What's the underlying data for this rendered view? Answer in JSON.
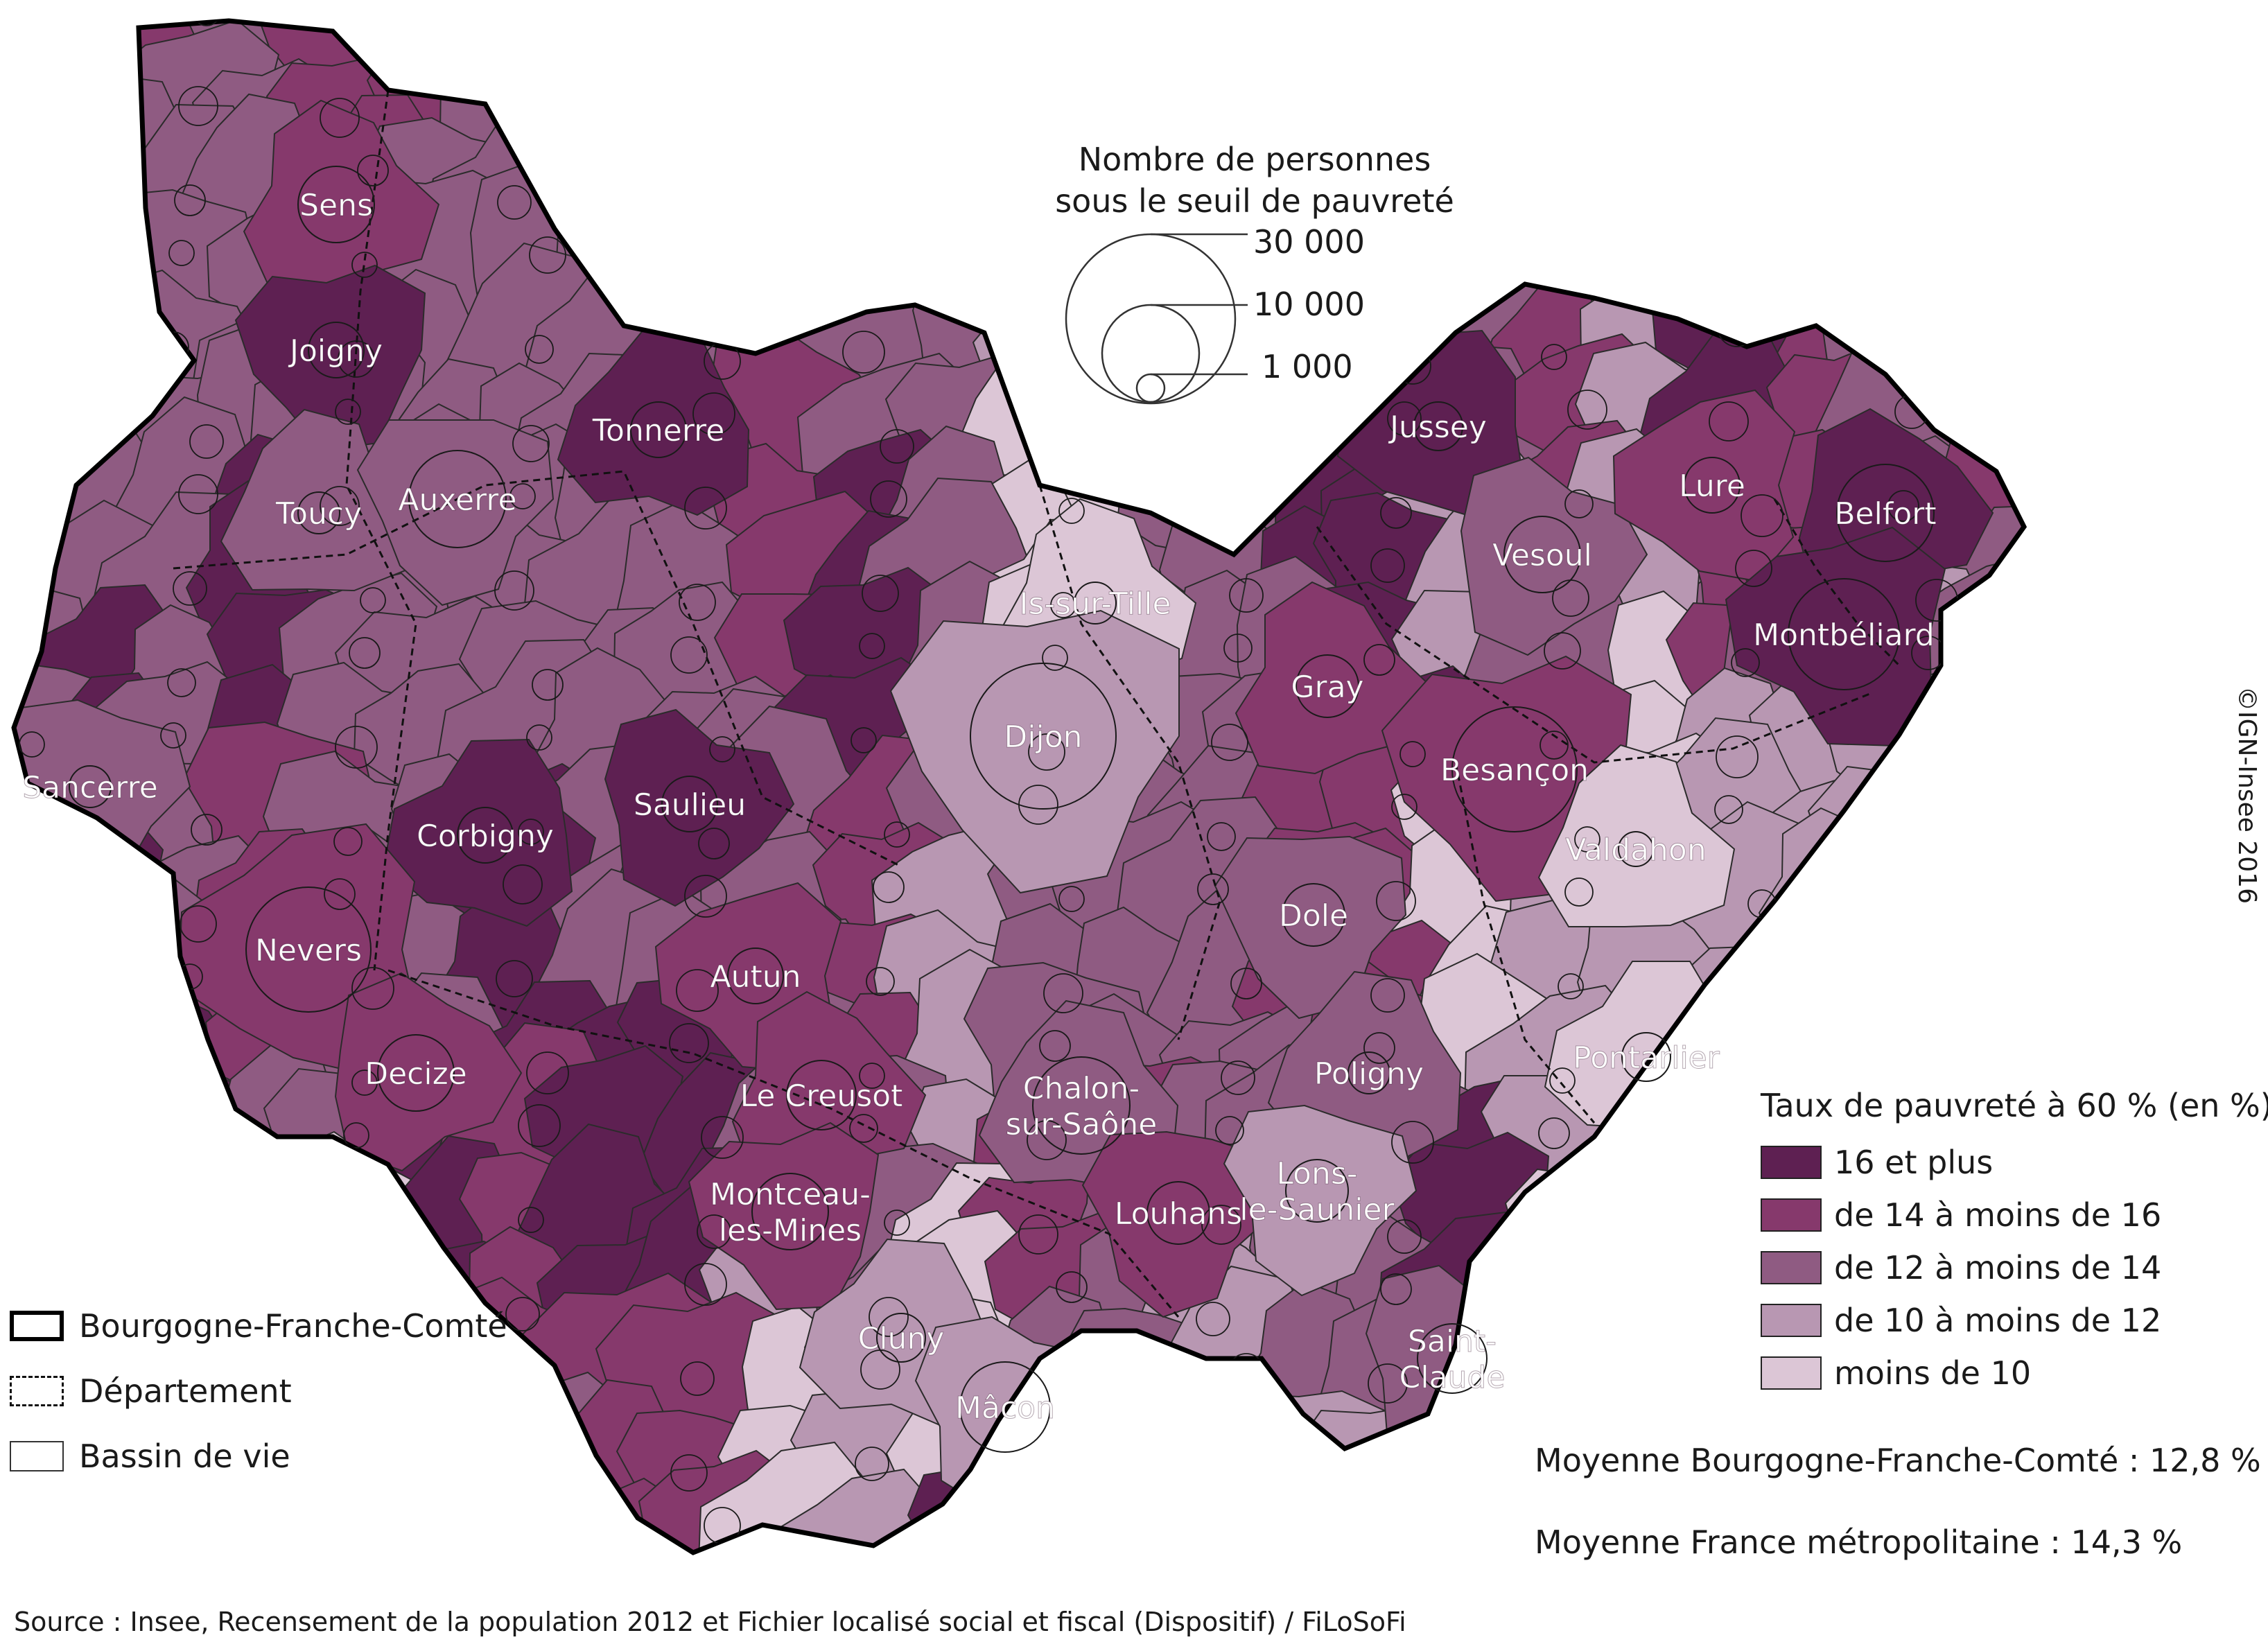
{
  "size_legend": {
    "title_line1": "Nombre de personnes",
    "title_line2": "sous le seuil de pauvreté",
    "values": [
      "30 000",
      "10 000",
      "1 000"
    ]
  },
  "rate_legend": {
    "title": "Taux de pauvreté à 60 % (en %)",
    "classes": [
      {
        "label": "16 et plus",
        "color": "#5e2052"
      },
      {
        "label": "de 14 à moins de 16",
        "color": "#86396c"
      },
      {
        "label": "de 12 à moins de 14",
        "color": "#8f5b82"
      },
      {
        "label": "de 10 à moins de 12",
        "color": "#b897b2"
      },
      {
        "label": "moins de 10",
        "color": "#dcc6d6"
      }
    ]
  },
  "boundary_legend": {
    "region": "Bourgogne-Franche-Comté",
    "department": "Département",
    "bassin": "Bassin de vie"
  },
  "averages": {
    "region": "Moyenne Bourgogne-Franche-Comté : 12,8 %",
    "france": "Moyenne France métropolitaine : 14,3 %"
  },
  "source": "Source : Insee, Recensement de la population 2012 et Fichier localisé social et fiscal (Dispositif) / FiLoSoFi",
  "credit": "©IGN-Insee 2016",
  "places": [
    {
      "name": "Sens",
      "cls": 1
    },
    {
      "name": "Joigny",
      "cls": 0
    },
    {
      "name": "Toucy",
      "cls": 2
    },
    {
      "name": "Auxerre",
      "cls": 2
    },
    {
      "name": "Tonnerre",
      "cls": 0
    },
    {
      "name": "Sancerre",
      "cls": 2
    },
    {
      "name": "Corbigny",
      "cls": 0
    },
    {
      "name": "Saulieu",
      "cls": 0
    },
    {
      "name": "Nevers",
      "cls": 1
    },
    {
      "name": "Decize",
      "cls": 1
    },
    {
      "name": "Autun",
      "cls": 1
    },
    {
      "name": "Le Creusot",
      "cls": 1
    },
    {
      "name": "Montceau-\nles-Mines",
      "cls": 1
    },
    {
      "name": "Is-sur-Tille",
      "cls": 4
    },
    {
      "name": "Dijon",
      "cls": 3
    },
    {
      "name": "Chalon-\nsur-Saône",
      "cls": 2
    },
    {
      "name": "Louhans",
      "cls": 1
    },
    {
      "name": "Cluny",
      "cls": 3
    },
    {
      "name": "Mâcon",
      "cls": 3
    },
    {
      "name": "Jussey",
      "cls": 0
    },
    {
      "name": "Vesoul",
      "cls": 2
    },
    {
      "name": "Lure",
      "cls": 1
    },
    {
      "name": "Belfort",
      "cls": 0
    },
    {
      "name": "Montbéliard",
      "cls": 0
    },
    {
      "name": "Gray",
      "cls": 1
    },
    {
      "name": "Besançon",
      "cls": 1
    },
    {
      "name": "Valdahon",
      "cls": 4
    },
    {
      "name": "Dole",
      "cls": 2
    },
    {
      "name": "Poligny",
      "cls": 2
    },
    {
      "name": "Lons-\nle-Saunier",
      "cls": 3
    },
    {
      "name": "Pontarlier",
      "cls": 4
    },
    {
      "name": "Saint-\nClaude",
      "cls": 2
    }
  ]
}
